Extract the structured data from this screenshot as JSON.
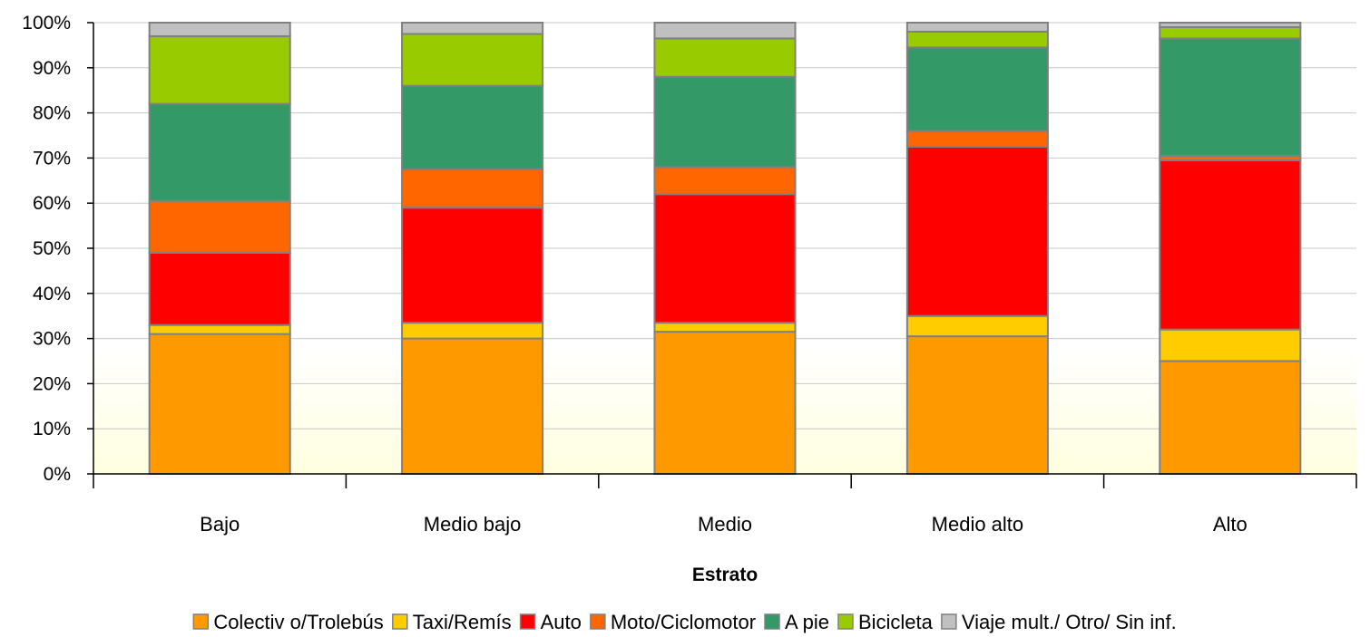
{
  "chart_data": {
    "type": "bar",
    "stacked": "percent",
    "title": "",
    "xlabel": "Estrato",
    "ylabel": "",
    "ylim": [
      0,
      100
    ],
    "yticks": [
      "0%",
      "10%",
      "20%",
      "30%",
      "40%",
      "50%",
      "60%",
      "70%",
      "80%",
      "90%",
      "100%"
    ],
    "grid": "horizontal",
    "legend_position": "bottom",
    "categories": [
      "Bajo",
      "Medio bajo",
      "Medio",
      "Medio alto",
      "Alto"
    ],
    "series": [
      {
        "name": "Colectiv o/Trolebús",
        "color": "#ff9900",
        "values": [
          31.0,
          30.0,
          31.5,
          30.5,
          25.0
        ]
      },
      {
        "name": "Taxi/Remís",
        "color": "#ffcc00",
        "values": [
          2.0,
          3.5,
          2.0,
          4.5,
          7.0
        ]
      },
      {
        "name": "Auto",
        "color": "#ff0000",
        "values": [
          16.0,
          25.5,
          28.5,
          37.5,
          37.5
        ]
      },
      {
        "name": "Moto/Ciclomotor",
        "color": "#ff6600",
        "values": [
          11.5,
          8.5,
          6.0,
          3.5,
          1.0
        ]
      },
      {
        "name": "A pie",
        "color": "#339966",
        "values": [
          21.5,
          18.5,
          20.0,
          18.5,
          26.0
        ]
      },
      {
        "name": "Bicicleta",
        "color": "#99cc00",
        "values": [
          15.0,
          11.5,
          8.5,
          3.5,
          2.5
        ]
      },
      {
        "name": "Viaje mult./ Otro/ Sin inf.",
        "color": "#c0c0c0",
        "values": [
          3.0,
          2.5,
          3.5,
          2.0,
          1.0
        ]
      }
    ]
  }
}
